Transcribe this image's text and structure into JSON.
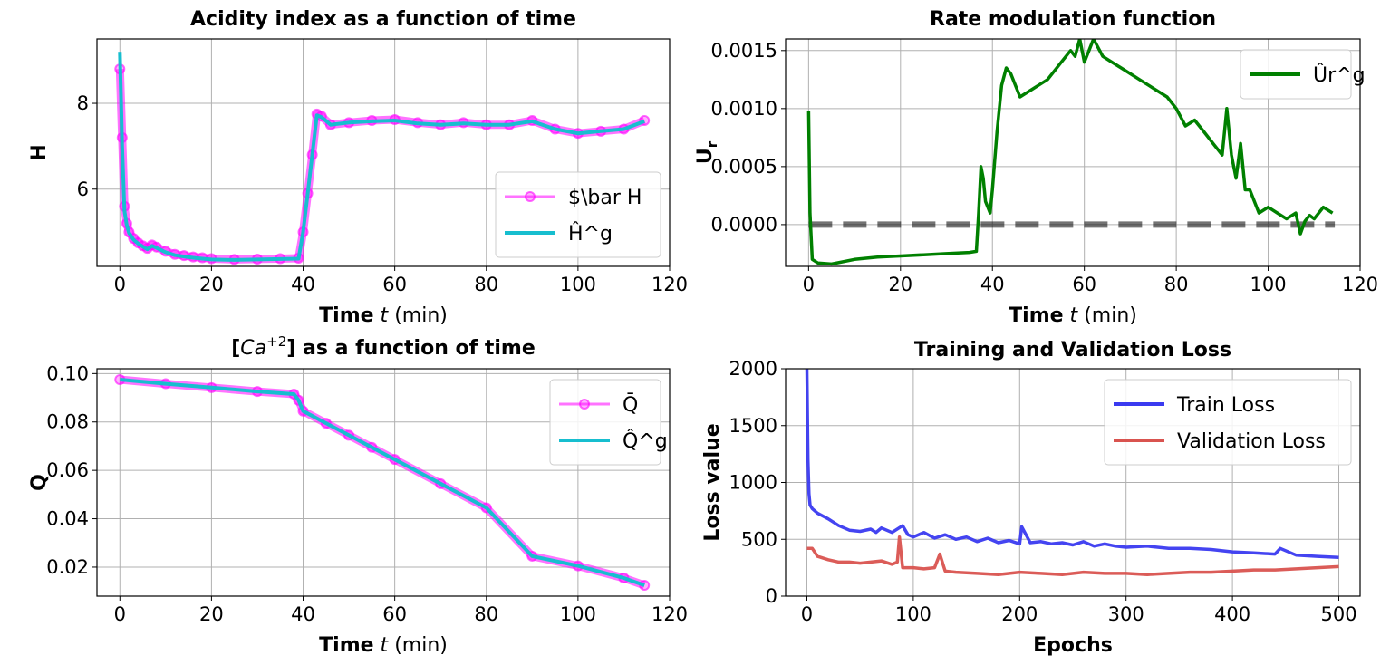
{
  "chart_data": [
    {
      "id": "acidity",
      "type": "line",
      "title": "Acidity index as a function of time",
      "xlabel": {
        "bold": "Time",
        "italic": "t",
        "rest": "(min)"
      },
      "ylabel": "H",
      "xlim": [
        -5,
        120
      ],
      "ylim": [
        4.2,
        9.5
      ],
      "xticks": [
        0,
        20,
        40,
        60,
        80,
        100,
        120
      ],
      "yticks": [
        6,
        8
      ],
      "legend_position": "lower-right",
      "series": [
        {
          "name": "$\\bar H",
          "color": "#ff00ff",
          "style": "line-markers",
          "x": [
            0,
            0.5,
            1,
            1.5,
            2,
            3,
            4,
            5,
            6,
            7,
            8,
            10,
            12,
            14,
            16,
            18,
            20,
            25,
            30,
            35,
            39,
            40,
            41,
            42,
            43,
            44,
            46,
            50,
            55,
            60,
            65,
            70,
            75,
            80,
            85,
            90,
            95,
            100,
            105,
            110,
            114.5
          ],
          "y": [
            8.8,
            7.2,
            5.6,
            5.2,
            5.0,
            4.85,
            4.75,
            4.68,
            4.62,
            4.7,
            4.65,
            4.55,
            4.48,
            4.45,
            4.42,
            4.4,
            4.38,
            4.36,
            4.37,
            4.38,
            4.39,
            5.0,
            5.9,
            6.8,
            7.75,
            7.7,
            7.5,
            7.55,
            7.6,
            7.62,
            7.55,
            7.5,
            7.55,
            7.5,
            7.5,
            7.6,
            7.4,
            7.3,
            7.35,
            7.4,
            7.6
          ]
        },
        {
          "name": "Ĥ^g",
          "color": "#17becf",
          "style": "line",
          "x": [
            0,
            0.5,
            1,
            1.5,
            2,
            3,
            4,
            5,
            6,
            7,
            8,
            10,
            12,
            14,
            16,
            18,
            20,
            25,
            30,
            35,
            39,
            40,
            41,
            42,
            43,
            44,
            46,
            50,
            55,
            60,
            65,
            70,
            75,
            80,
            85,
            90,
            95,
            100,
            105,
            110,
            114.5
          ],
          "y": [
            9.2,
            7.0,
            5.5,
            5.15,
            4.98,
            4.82,
            4.73,
            4.66,
            4.6,
            4.68,
            4.63,
            4.53,
            4.46,
            4.43,
            4.4,
            4.38,
            4.36,
            4.35,
            4.36,
            4.37,
            4.38,
            5.0,
            5.9,
            6.8,
            7.72,
            7.68,
            7.5,
            7.55,
            7.58,
            7.6,
            7.53,
            7.5,
            7.53,
            7.5,
            7.5,
            7.58,
            7.4,
            7.3,
            7.35,
            7.4,
            7.58
          ]
        }
      ]
    },
    {
      "id": "rate",
      "type": "line",
      "title": "Rate modulation function",
      "xlabel": {
        "bold": "Time",
        "italic": "t",
        "rest": "(min)"
      },
      "ylabel": "U_r",
      "xlim": [
        -5,
        120
      ],
      "ylim": [
        -0.00036,
        0.0016
      ],
      "xticks": [
        0,
        20,
        40,
        60,
        80,
        100,
        120
      ],
      "yticks": [
        0.0,
        0.0005,
        0.001,
        0.0015
      ],
      "ytick_labels": [
        "0.0000",
        "0.0005",
        "0.0010",
        "0.0015"
      ],
      "legend_position": "upper-right",
      "reference_line": {
        "y": 0.0,
        "x_from": 0,
        "x_to": 114.5,
        "color": "#000000",
        "style": "dashed"
      },
      "series": [
        {
          "name": "Ûr^g",
          "color": "#008000",
          "style": "line",
          "x": [
            0,
            0.3,
            0.8,
            2,
            5,
            10,
            15,
            20,
            25,
            30,
            35,
            36.5,
            37,
            37.5,
            38,
            38.5,
            39.5,
            40,
            41,
            42,
            43,
            44,
            46,
            48,
            50,
            52,
            55,
            57,
            58,
            59,
            60,
            61,
            62,
            64,
            66,
            68,
            70,
            72,
            74,
            76,
            78,
            80,
            82,
            84,
            86,
            88,
            90,
            91,
            92,
            93,
            94,
            95,
            96,
            98,
            100,
            102,
            104,
            106,
            107,
            108,
            109,
            110,
            112,
            114
          ],
          "y": [
            0.00098,
            0.0001,
            -0.0003,
            -0.00033,
            -0.00034,
            -0.0003,
            -0.00028,
            -0.00027,
            -0.00026,
            -0.00025,
            -0.00024,
            -0.00023,
            0.0001,
            0.0005,
            0.0004,
            0.0002,
            0.0001,
            0.0003,
            0.0008,
            0.0012,
            0.00135,
            0.0013,
            0.0011,
            0.00115,
            0.0012,
            0.00125,
            0.0014,
            0.0015,
            0.00145,
            0.0016,
            0.0014,
            0.0015,
            0.0016,
            0.00145,
            0.0014,
            0.00135,
            0.0013,
            0.00125,
            0.0012,
            0.00115,
            0.0011,
            0.001,
            0.00085,
            0.0009,
            0.0008,
            0.0007,
            0.0006,
            0.001,
            0.0006,
            0.0004,
            0.0007,
            0.0003,
            0.0003,
            0.0001,
            0.00015,
            0.0001,
            5e-05,
            0.0001,
            -8e-05,
            3e-05,
            8e-05,
            5e-05,
            0.00015,
            0.0001
          ]
        }
      ]
    },
    {
      "id": "calcium",
      "type": "line",
      "title_prefix": "[",
      "title_italic": "Ca",
      "title_sup": "+2",
      "title_suffix": "] as a function of time",
      "xlabel": {
        "bold": "Time",
        "italic": "t",
        "rest": "(min)"
      },
      "ylabel": "Q",
      "xlim": [
        -5,
        120
      ],
      "ylim": [
        0.008,
        0.102
      ],
      "xticks": [
        0,
        20,
        40,
        60,
        80,
        100,
        120
      ],
      "yticks": [
        0.02,
        0.04,
        0.06,
        0.08,
        0.1
      ],
      "ytick_labels": [
        "0.02",
        "0.04",
        "0.06",
        "0.08",
        "0.10"
      ],
      "legend_position": "upper-right",
      "series": [
        {
          "name": "Q̄",
          "color": "#ff00ff",
          "style": "line-markers",
          "x": [
            0,
            10,
            20,
            30,
            38,
            39,
            40,
            45,
            50,
            55,
            60,
            70,
            80,
            90,
            100,
            110,
            114.5
          ],
          "y": [
            0.0975,
            0.0958,
            0.0942,
            0.0926,
            0.0915,
            0.089,
            0.0845,
            0.0795,
            0.0745,
            0.0695,
            0.0645,
            0.0545,
            0.0445,
            0.0245,
            0.0205,
            0.0155,
            0.0125
          ]
        },
        {
          "name": "Q̂^g",
          "color": "#17becf",
          "style": "line",
          "x": [
            0,
            10,
            20,
            30,
            38,
            39,
            40,
            45,
            50,
            55,
            60,
            70,
            80,
            90,
            100,
            110,
            114.5
          ],
          "y": [
            0.0975,
            0.0958,
            0.0942,
            0.0926,
            0.0915,
            0.089,
            0.0845,
            0.0795,
            0.0745,
            0.0695,
            0.0645,
            0.0545,
            0.0445,
            0.0245,
            0.0205,
            0.0155,
            0.0125
          ]
        }
      ]
    },
    {
      "id": "loss",
      "type": "line",
      "title": "Training and Validation Loss",
      "xlabel_text": "Epochs",
      "ylabel": "Loss value",
      "xlim": [
        -20,
        520
      ],
      "ylim": [
        0,
        2000
      ],
      "xticks": [
        0,
        100,
        200,
        300,
        400,
        500
      ],
      "yticks": [
        0,
        500,
        1000,
        1500,
        2000
      ],
      "legend_position": "upper-right",
      "series": [
        {
          "name": "Train Loss",
          "color": "#3a3af0",
          "style": "line",
          "x": [
            0,
            1,
            2,
            3,
            5,
            10,
            20,
            30,
            40,
            50,
            60,
            65,
            70,
            80,
            90,
            95,
            100,
            110,
            120,
            130,
            140,
            150,
            160,
            170,
            180,
            190,
            200,
            202,
            210,
            220,
            230,
            240,
            250,
            260,
            270,
            280,
            290,
            300,
            320,
            340,
            360,
            380,
            400,
            420,
            440,
            445,
            460,
            480,
            500
          ],
          "y": [
            2000,
            1200,
            900,
            800,
            770,
            730,
            680,
            620,
            580,
            570,
            590,
            560,
            600,
            560,
            620,
            540,
            520,
            560,
            510,
            540,
            500,
            520,
            480,
            510,
            470,
            490,
            460,
            610,
            470,
            480,
            460,
            470,
            450,
            480,
            440,
            460,
            440,
            430,
            440,
            420,
            420,
            410,
            390,
            380,
            370,
            420,
            360,
            350,
            340
          ]
        },
        {
          "name": "Validation Loss",
          "color": "#d9534f",
          "style": "line",
          "x": [
            0,
            5,
            10,
            20,
            30,
            40,
            50,
            60,
            70,
            80,
            85,
            87,
            90,
            100,
            110,
            120,
            125,
            130,
            140,
            160,
            180,
            200,
            220,
            240,
            260,
            280,
            300,
            320,
            340,
            360,
            380,
            400,
            420,
            440,
            460,
            480,
            500
          ],
          "y": [
            420,
            420,
            350,
            320,
            300,
            300,
            290,
            300,
            310,
            280,
            300,
            520,
            250,
            250,
            240,
            250,
            370,
            220,
            210,
            200,
            190,
            210,
            200,
            190,
            210,
            200,
            200,
            190,
            200,
            210,
            210,
            220,
            230,
            230,
            240,
            250,
            260
          ]
        }
      ]
    }
  ]
}
